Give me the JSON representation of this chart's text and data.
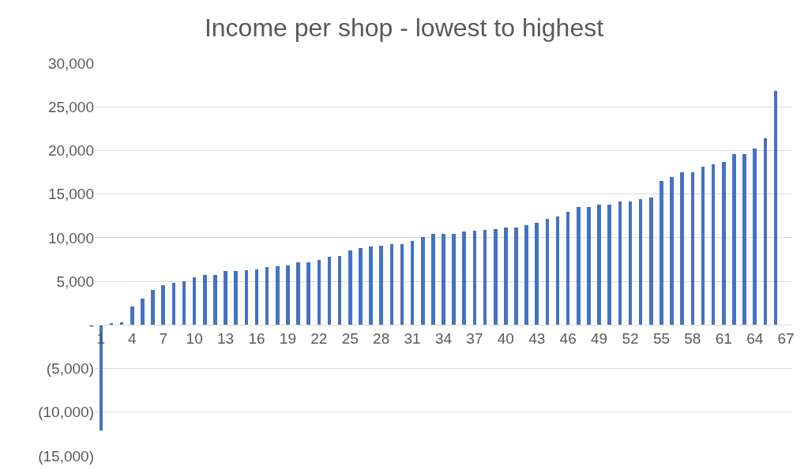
{
  "chart_data": {
    "type": "bar",
    "title": "Income per shop - lowest to highest",
    "categories": [
      "1",
      null,
      null,
      "4",
      null,
      null,
      "7",
      null,
      null,
      "10",
      null,
      null,
      "13",
      null,
      null,
      "16",
      null,
      null,
      "19",
      null,
      null,
      "22",
      null,
      null,
      "25",
      null,
      null,
      "28",
      null,
      null,
      "31",
      null,
      null,
      "34",
      null,
      null,
      "37",
      null,
      null,
      "40",
      null,
      null,
      "43",
      null,
      null,
      "46",
      null,
      null,
      "49",
      null,
      null,
      "52",
      null,
      null,
      "55",
      null,
      null,
      "58",
      null,
      null,
      "61",
      null,
      null,
      "64",
      null,
      null,
      "67"
    ],
    "values": [
      -12100,
      200,
      300,
      2100,
      3000,
      4000,
      4600,
      4800,
      5000,
      5500,
      5700,
      5700,
      6200,
      6200,
      6300,
      6400,
      6600,
      6700,
      6800,
      7200,
      7200,
      7500,
      7800,
      7900,
      8500,
      8800,
      9000,
      9100,
      9300,
      9300,
      9600,
      10100,
      10400,
      10400,
      10400,
      10700,
      10800,
      10900,
      11000,
      11200,
      11200,
      11400,
      11700,
      12200,
      12400,
      13000,
      13500,
      13500,
      13800,
      13800,
      14200,
      14200,
      14400,
      14600,
      16500,
      17000,
      17500,
      17500,
      18100,
      18400,
      18700,
      19600,
      19600,
      20200,
      21400,
      26800,
      null
    ],
    "color": "#4472c4",
    "ylim": [
      -15000,
      30000
    ],
    "yticks": [
      {
        "value": -15000,
        "label": "(15,000)"
      },
      {
        "value": -10000,
        "label": "(10,000)"
      },
      {
        "value": -5000,
        "label": "(5,000)"
      },
      {
        "value": 0,
        "label": "-"
      },
      {
        "value": 5000,
        "label": "5,000"
      },
      {
        "value": 10000,
        "label": "10,000"
      },
      {
        "value": 15000,
        "label": "15,000"
      },
      {
        "value": 20000,
        "label": "20,000"
      },
      {
        "value": 25000,
        "label": "25,000"
      },
      {
        "value": 30000,
        "label": "30,000"
      }
    ],
    "grid": "y"
  }
}
